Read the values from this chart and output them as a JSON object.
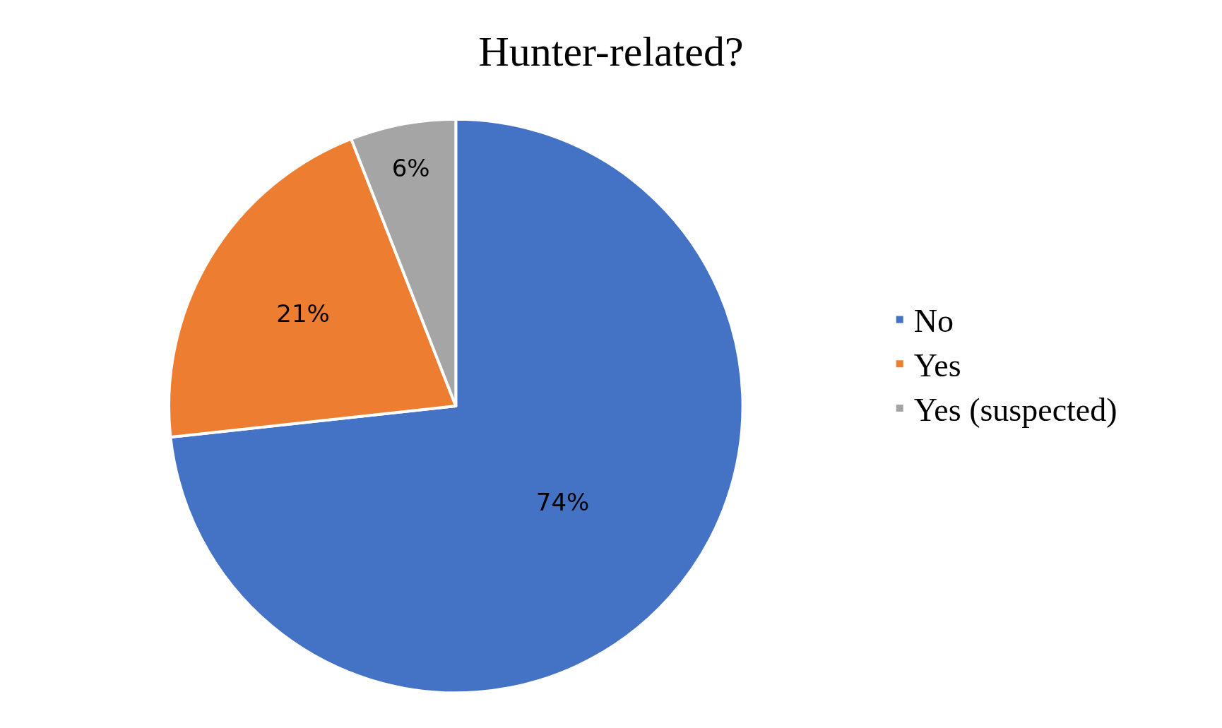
{
  "chart_data": {
    "type": "pie",
    "title": "Hunter-related?",
    "categories": [
      "No",
      "Yes",
      "Yes (suspected)"
    ],
    "values": [
      74,
      21,
      6
    ],
    "value_labels": [
      "74%",
      "21%",
      "6%"
    ],
    "colors": [
      "#4472c4",
      "#ed7d31",
      "#a5a5a5"
    ],
    "legend": "right"
  }
}
